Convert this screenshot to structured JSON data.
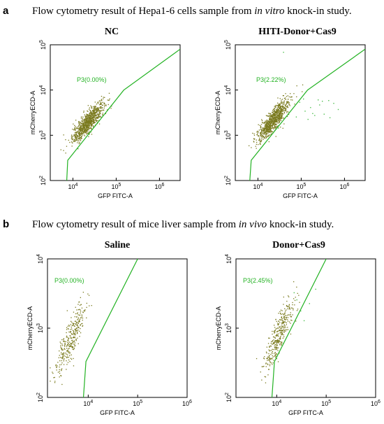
{
  "section_a": {
    "letter": "a",
    "heading_before": "Flow cytometry result of Hepa1-6 cells sample from ",
    "heading_italic": "in vitro",
    "heading_after": " knock-in study."
  },
  "section_b": {
    "letter": "b",
    "heading_before": "Flow cytometry result of mice liver sample from ",
    "heading_italic": "in vivo",
    "heading_after": " knock-in study."
  },
  "colors": {
    "gate": "#22b222",
    "events": "#7a7a1e",
    "events_sparse": "#4fc04f",
    "axis": "#000000"
  },
  "chart_data": [
    {
      "type": "scatter",
      "title": "NC",
      "xlabel": "GFP FITC-A",
      "ylabel": "mCherryECD-A",
      "x_scale": "log",
      "y_scale": "log",
      "xlim": [
        3000,
        3000000
      ],
      "ylim": [
        100,
        100000
      ],
      "x_ticks": [
        {
          "sup": "4"
        },
        {
          "sup": "5"
        },
        {
          "sup": "6"
        }
      ],
      "y_ticks": [
        {
          "sup": "2"
        },
        {
          "sup": "3"
        },
        {
          "sup": "4"
        },
        {
          "sup": "5"
        }
      ],
      "gate_label": "P3(0.00%)",
      "gate_percent": 0.0,
      "gate_polygon": [
        [
          7200,
          100
        ],
        [
          7600,
          280
        ],
        [
          150000,
          10000
        ],
        [
          3000000,
          80000
        ]
      ],
      "cluster": {
        "x_center": 22000,
        "y_center": 2000,
        "x_spread": 0.18,
        "y_spread": 0.22,
        "corr": 0.85,
        "n": 900
      },
      "sparse_events": []
    },
    {
      "type": "scatter",
      "title": "HITI-Donor+Cas9",
      "xlabel": "GFP FITC-A",
      "ylabel": "mCherryECD-A",
      "x_scale": "log",
      "y_scale": "log",
      "xlim": [
        3000,
        3000000
      ],
      "ylim": [
        100,
        100000
      ],
      "x_ticks": [
        {
          "sup": "4"
        },
        {
          "sup": "5"
        },
        {
          "sup": "6"
        }
      ],
      "y_ticks": [
        {
          "sup": "2"
        },
        {
          "sup": "3"
        },
        {
          "sup": "4"
        },
        {
          "sup": "5"
        }
      ],
      "gate_label": "P3(2.22%)",
      "gate_percent": 2.22,
      "gate_polygon": [
        [
          6500,
          100
        ],
        [
          7000,
          280
        ],
        [
          140000,
          10000
        ],
        [
          3000000,
          80000
        ]
      ],
      "cluster": {
        "x_center": 22000,
        "y_center": 2200,
        "x_spread": 0.18,
        "y_spread": 0.22,
        "corr": 0.85,
        "n": 900
      },
      "sparse_events": [
        [
          90000,
          5500
        ],
        [
          120000,
          3500
        ],
        [
          160000,
          4200
        ],
        [
          200000,
          2800
        ],
        [
          260000,
          4800
        ],
        [
          330000,
          3000
        ],
        [
          450000,
          2500
        ],
        [
          550000,
          5200
        ],
        [
          420000,
          6000
        ],
        [
          75000,
          2600
        ],
        [
          110000,
          6500
        ],
        [
          180000,
          3100
        ],
        [
          700000,
          3800
        ],
        [
          38000,
          70000
        ],
        [
          300000,
          5800
        ],
        [
          140000,
          2300
        ],
        [
          240000,
          6200
        ]
      ]
    },
    {
      "type": "scatter",
      "title": "Saline",
      "xlabel": "GFP FITC-A",
      "ylabel": "mCherryECD-A",
      "x_scale": "log",
      "y_scale": "log",
      "xlim": [
        1500,
        1000000
      ],
      "ylim": [
        100,
        10000
      ],
      "x_ticks": [
        {
          "sup": "4"
        },
        {
          "sup": "5"
        },
        {
          "sup": "6"
        }
      ],
      "y_ticks": [
        {
          "sup": "2"
        },
        {
          "sup": "3"
        },
        {
          "sup": "4"
        }
      ],
      "gate_label": "P3(0.00%)",
      "gate_percent": 0.0,
      "gate_polygon": [
        [
          8000,
          100
        ],
        [
          9000,
          330
        ],
        [
          100000,
          10000
        ]
      ],
      "cluster": {
        "x_center": 4500,
        "y_center": 750,
        "x_spread": 0.16,
        "y_spread": 0.28,
        "corr": 0.85,
        "n": 320
      },
      "sparse_events": []
    },
    {
      "type": "scatter",
      "title": "Donor+Cas9",
      "xlabel": "GFP FITC-A",
      "ylabel": "mCherryECD-A",
      "x_scale": "log",
      "y_scale": "log",
      "xlim": [
        1500,
        1000000
      ],
      "ylim": [
        100,
        10000
      ],
      "x_ticks": [
        {
          "sup": "4"
        },
        {
          "sup": "5"
        },
        {
          "sup": "6"
        }
      ],
      "y_ticks": [
        {
          "sup": "2"
        },
        {
          "sup": "3"
        },
        {
          "sup": "4"
        }
      ],
      "gate_label": "P3(2.45%)",
      "gate_percent": 2.45,
      "gate_polygon": [
        [
          8000,
          100
        ],
        [
          9000,
          330
        ],
        [
          100000,
          10000
        ]
      ],
      "cluster": {
        "x_center": 11000,
        "y_center": 850,
        "x_spread": 0.16,
        "y_spread": 0.28,
        "corr": 0.85,
        "n": 360
      },
      "sparse_events": [
        [
          25000,
          2600
        ],
        [
          30000,
          1800
        ],
        [
          22000,
          3300
        ],
        [
          45000,
          2300
        ],
        [
          60000,
          3700
        ],
        [
          35000,
          1300
        ]
      ]
    }
  ]
}
